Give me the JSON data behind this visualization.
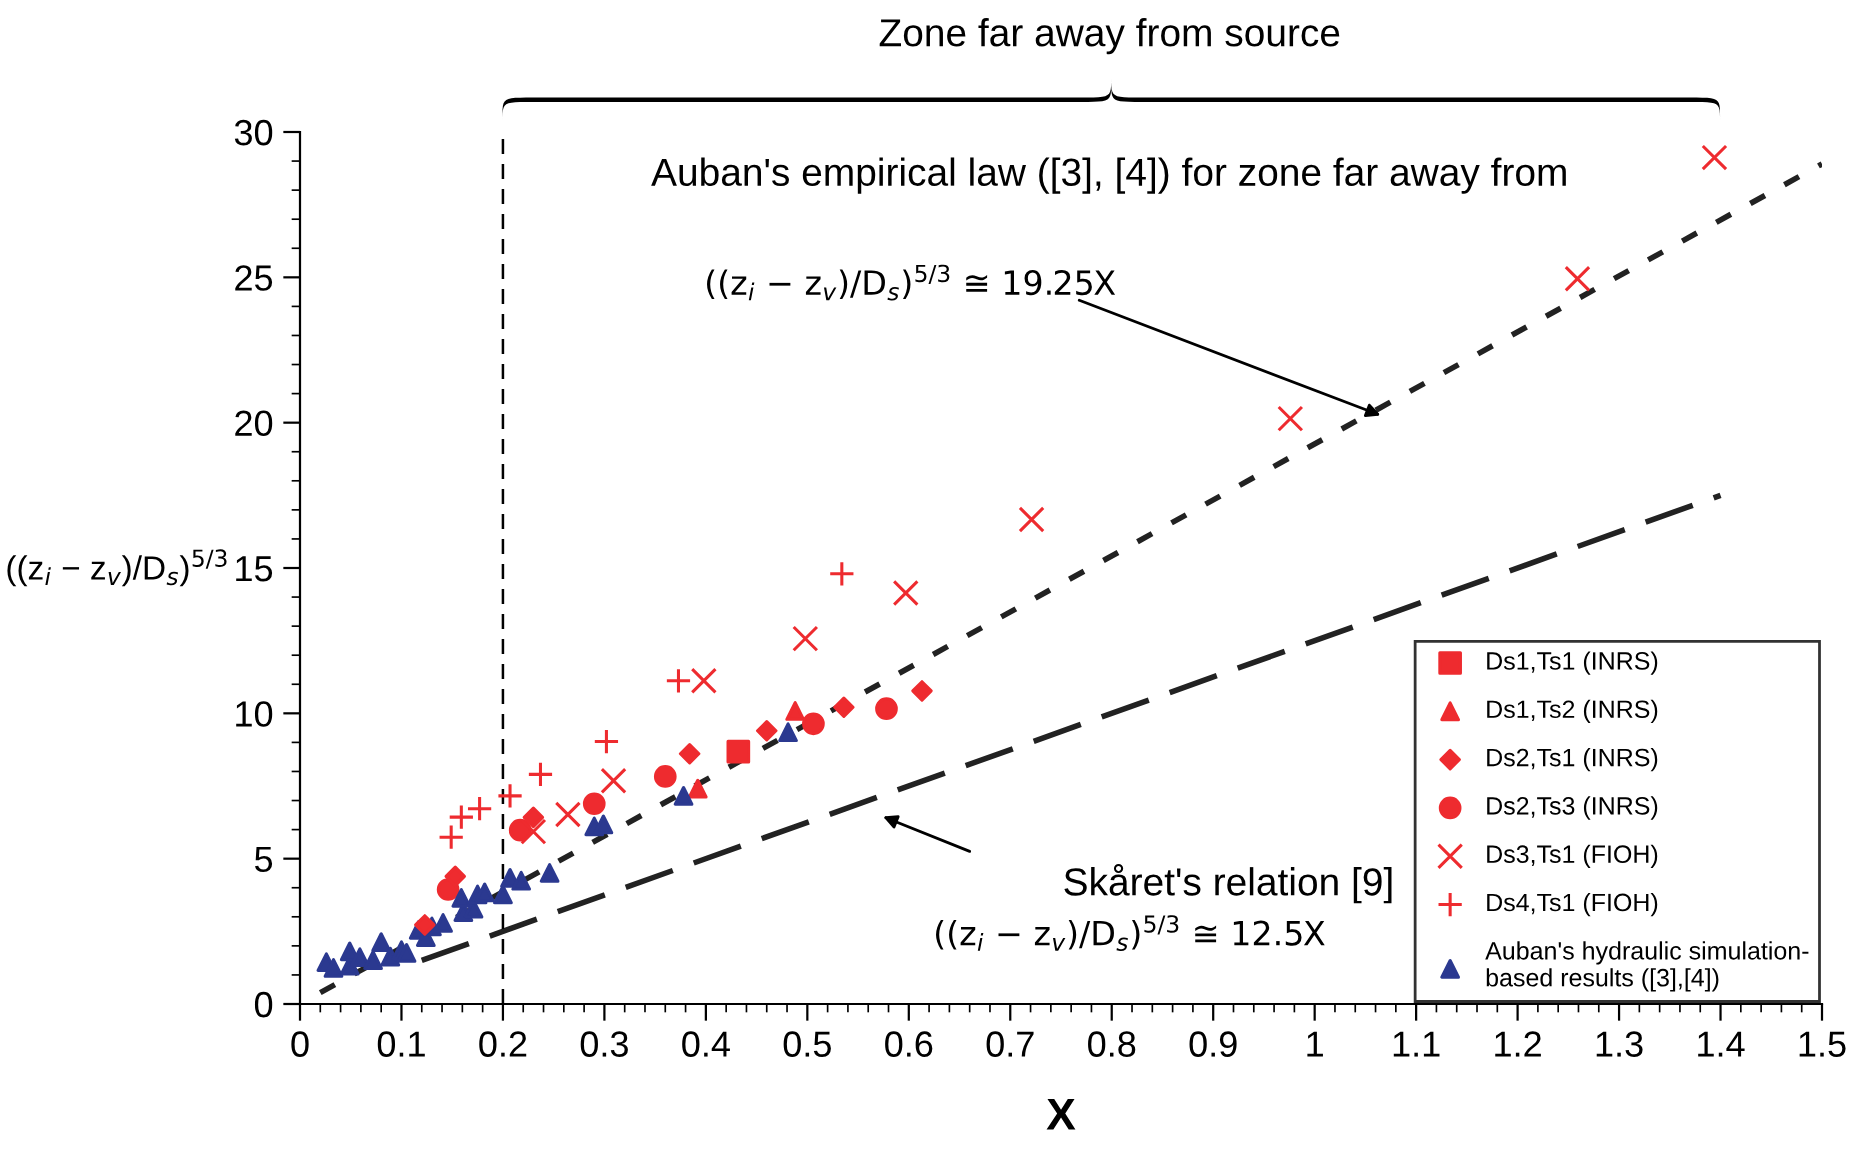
{
  "chart_data": {
    "type": "scatter",
    "xlabel": "X",
    "ylabel": "((z$_{i}$ − z$_{v}$)/D$_{s}$)$^{5/3}$",
    "xlim": [
      0,
      1.5
    ],
    "ylim": [
      0,
      30
    ],
    "xticks": [
      0,
      0.1,
      0.2,
      0.3,
      0.4,
      0.5,
      0.6,
      0.7,
      0.8,
      0.9,
      1,
      1.1,
      1.2,
      1.3,
      1.4,
      1.5
    ],
    "yticks": [
      0,
      5,
      10,
      15,
      20,
      25,
      30
    ],
    "grid": false,
    "legend": "bottom right",
    "series": [
      {
        "name": "Ds1,Ts1 (INRS)",
        "color": "#ee2b2f",
        "marker": "square",
        "x": [
          0.432
        ],
        "values": [
          8.68
        ]
      },
      {
        "name": "Ds1,Ts2 (INRS)",
        "color": "#ee2b2f",
        "marker": "triangle",
        "x": [
          0.392,
          0.488
        ],
        "values": [
          7.41,
          10.08
        ]
      },
      {
        "name": "Ds2,Ts1 (INRS)",
        "color": "#ee2b2f",
        "marker": "diamond",
        "x": [
          0.123,
          0.153,
          0.23,
          0.384,
          0.46,
          0.536,
          0.613
        ],
        "values": [
          2.72,
          4.39,
          6.42,
          8.61,
          9.4,
          10.21,
          10.77
        ]
      },
      {
        "name": "Ds2,Ts3 (INRS)",
        "color": "#ee2b2f",
        "marker": "circle",
        "x": [
          0.146,
          0.217,
          0.29,
          0.36,
          0.506,
          0.578
        ],
        "values": [
          3.94,
          5.98,
          6.89,
          7.83,
          9.64,
          10.16
        ]
      },
      {
        "name": "Ds3,Ts1 (FIOH)",
        "color": "#ee2b2f",
        "marker": "cross",
        "x": [
          0.23,
          0.264,
          0.309,
          0.398,
          0.498,
          0.597,
          0.721,
          0.976,
          1.259,
          1.394
        ],
        "values": [
          5.93,
          6.52,
          7.68,
          11.12,
          12.57,
          14.14,
          16.67,
          20.14,
          24.95,
          29.12
        ]
      },
      {
        "name": "Ds4,Ts1 (FIOH)",
        "color": "#ee2b2f",
        "marker": "plus",
        "x": [
          0.149,
          0.159,
          0.177,
          0.207,
          0.237,
          0.302,
          0.373,
          0.534
        ],
        "values": [
          5.74,
          6.43,
          6.72,
          7.16,
          7.9,
          9.03,
          11.12,
          14.8
        ]
      },
      {
        "name": "Auban's hydraulic simulation-\nbased results ([3],[4])",
        "color": "#2b3990",
        "marker": "triangle",
        "x": [
          0.026,
          0.033,
          0.049,
          0.049,
          0.059,
          0.072,
          0.08,
          0.089,
          0.1,
          0.105,
          0.117,
          0.124,
          0.13,
          0.141,
          0.161,
          0.159,
          0.171,
          0.175,
          0.182,
          0.2,
          0.207,
          0.218,
          0.246,
          0.29,
          0.299,
          0.378,
          0.481
        ],
        "values": [
          1.44,
          1.24,
          1.32,
          1.81,
          1.61,
          1.51,
          2.13,
          1.63,
          1.85,
          1.76,
          2.55,
          2.3,
          2.67,
          2.79,
          3.16,
          3.65,
          3.28,
          3.77,
          3.84,
          3.77,
          4.34,
          4.24,
          4.51,
          6.11,
          6.18,
          7.16,
          9.35
        ]
      },
      {
        "type": "line",
        "color": "#222222",
        "line_style": "dotted",
        "x": [
          0.02,
          1.5
        ],
        "values": [
          0.39,
          28.9
        ]
      },
      {
        "type": "line",
        "color": "#222222",
        "line_style": "dashed",
        "x": [
          0.12,
          1.4
        ],
        "values": [
          1.5,
          17.5
        ]
      }
    ],
    "ref_lines": [
      {
        "axis": "x",
        "value": 0.2,
        "color": "#000000",
        "line_style": "dashed"
      }
    ],
    "annotations": [
      "Zone far away from source",
      "Auban's empirical law ([3], [4]) for zone far away from",
      "Skåret's relation [9]",
      "((z$_{i}$ − z$_{v}$)/D$_{s}$)$^{5/3}$ ≅ 19.25X",
      "((z$_{i}$ − z$_{v}$)/D$_{s}$)$^{5/3}$ ≅ 12.5X"
    ]
  }
}
